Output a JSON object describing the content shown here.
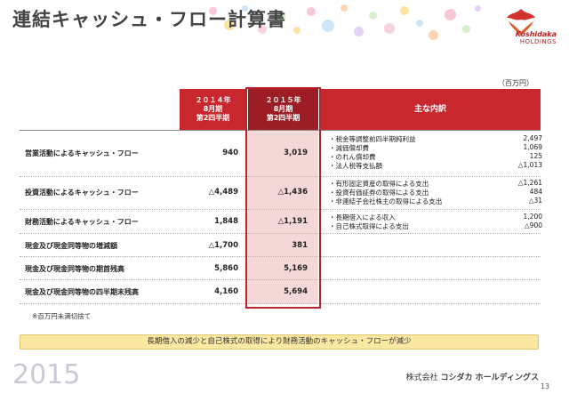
{
  "title": "連結キャッシュ・フロー計算書",
  "logo": {
    "name": "Koshidaka",
    "sub": "HOLDINGS"
  },
  "unit": "（百万円）",
  "headers": {
    "y2014": {
      "line1": "２０１４年",
      "line2": "8月期",
      "line3": "第2四半期"
    },
    "y2015": {
      "line1": "２０１５年",
      "line2": "8月期",
      "line3": "第2四半期"
    },
    "main": "主な内訳"
  },
  "rows": [
    {
      "label": "営業活動によるキャッシュ・フロー",
      "v2014": "940",
      "v2015": "3,019",
      "details": [
        {
          "label": "・税金等調整前四半期純利益",
          "value": "2,497"
        },
        {
          "label": "・減価償却費",
          "value": "1,069"
        },
        {
          "label": "・のれん償却費",
          "value": "125"
        },
        {
          "label": "・法人税等支払額",
          "value": "△1,013"
        }
      ]
    },
    {
      "label": "投資活動によるキャッシュ・フロー",
      "v2014": "△4,489",
      "v2015": "△1,436",
      "details": [
        {
          "label": "・有形固定資産の取得による支出",
          "value": "△1,261"
        },
        {
          "label": "・投資有価証券の取得による支出",
          "value": "484"
        },
        {
          "label": "・非連結子会社株主の取得による支出",
          "value": "△31"
        }
      ]
    },
    {
      "label": "財務活動によるキャッシュ・フロー",
      "v2014": "1,848",
      "v2015": "△1,191",
      "details": [
        {
          "label": "・長期借入による収入",
          "value": "1,200"
        },
        {
          "label": "・自己株式取得による支出",
          "value": "△900"
        }
      ]
    },
    {
      "label": "現金及び現金同等物の増減額",
      "v2014": "△1,700",
      "v2015": "381",
      "details": []
    },
    {
      "label": "現金及び現金同等物の期首残高",
      "v2014": "5,860",
      "v2015": "5,169",
      "details": []
    },
    {
      "label": "現金及び現金同等物の四半期末残高",
      "v2014": "4,160",
      "v2015": "5,694",
      "details": []
    }
  ],
  "footnote": "※百万円未満切捨て",
  "banner": "長期借入の減少と自己株式の取得により財務活動のキャッシュ・フローが減少",
  "year_mark": "2015",
  "company": {
    "prefix": "株式会社",
    "name": "コシダカ ホールディングス"
  },
  "page_number": "13",
  "colors": {
    "header_red": "#c8282d",
    "highlight_pink": "#f4d7d7",
    "banner_yellow": "#fbe8a3"
  }
}
